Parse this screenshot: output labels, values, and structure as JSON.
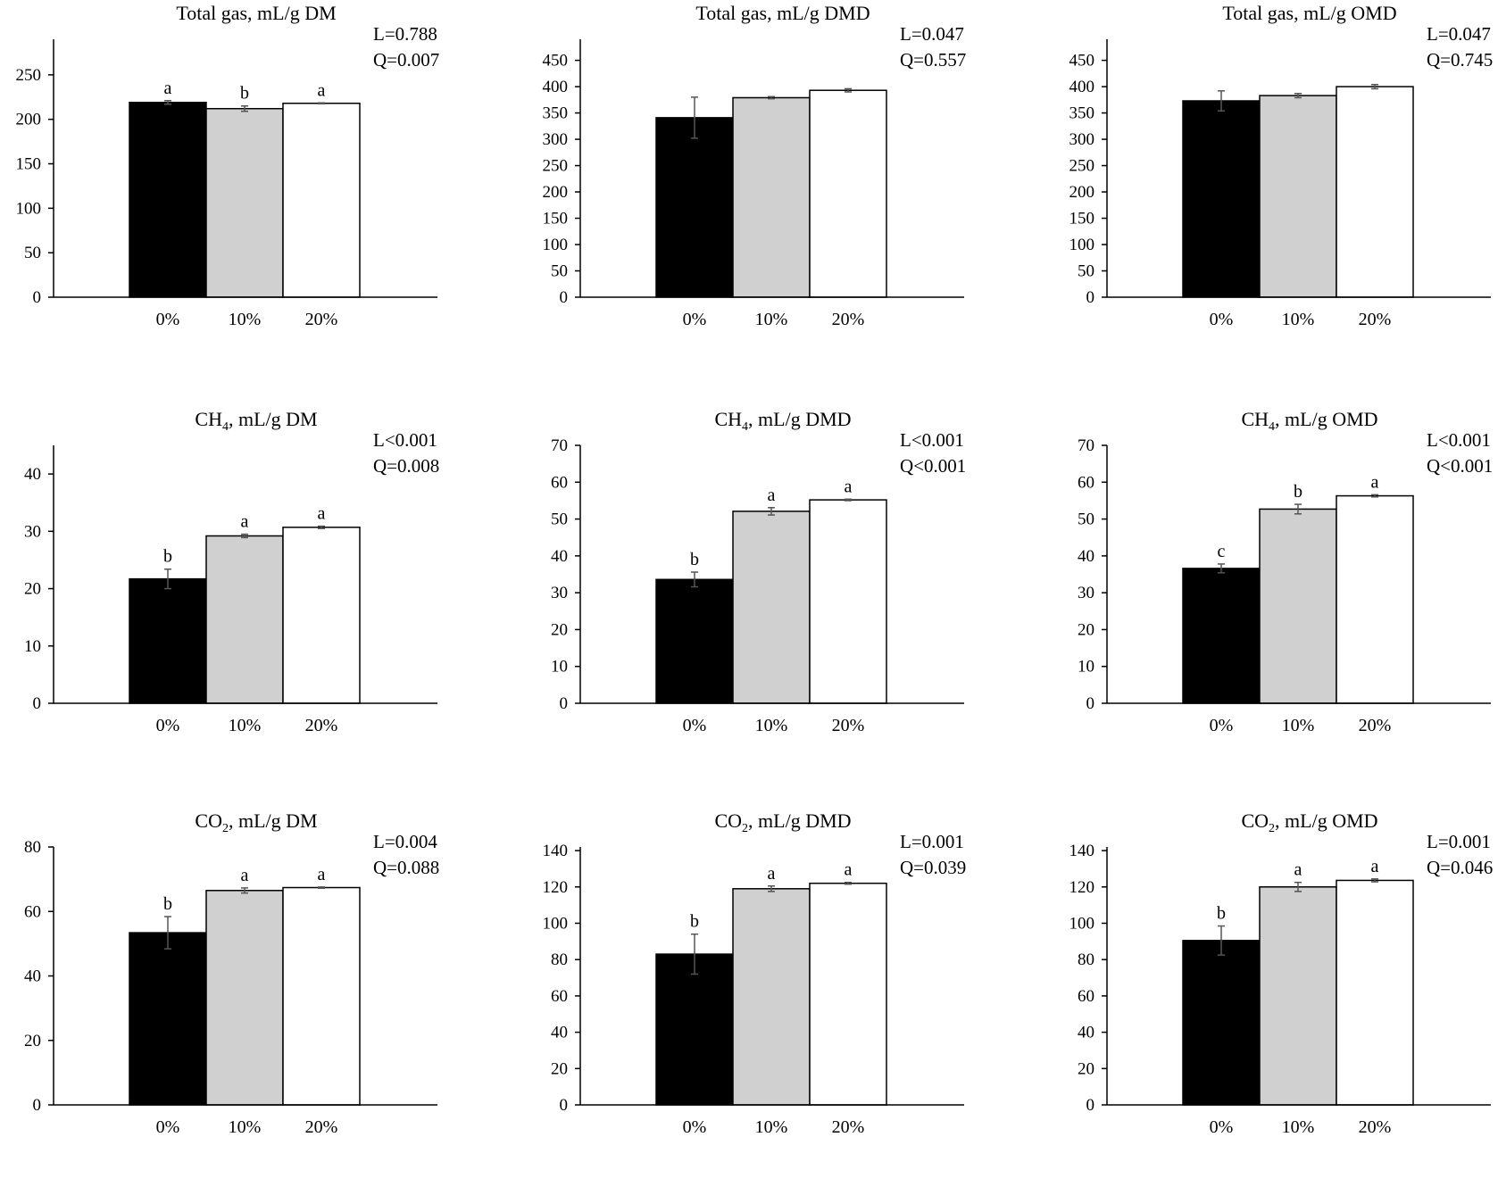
{
  "chart_data": [
    {
      "type": "bar",
      "title_main": "Total gas, mL/g DM",
      "title_sub": "",
      "title_rest": "",
      "categories": [
        "0%",
        "10%",
        "20%"
      ],
      "values": [
        219,
        212,
        218
      ],
      "errors": [
        2,
        3,
        0.5
      ],
      "letters": [
        "a",
        "b",
        "a"
      ],
      "stats": [
        "L=0.788",
        "Q=0.007"
      ],
      "ylim": [
        0,
        290
      ],
      "yticks": [
        "0",
        "50",
        "100",
        "150",
        "200",
        "250"
      ],
      "bar_colors": [
        "#000000",
        "#d0d0d0",
        "#ffffff"
      ]
    },
    {
      "type": "bar",
      "title_main": "Total gas, mL/g DMD",
      "title_sub": "",
      "title_rest": "",
      "categories": [
        "0%",
        "10%",
        "20%"
      ],
      "values": [
        341,
        379,
        393
      ],
      "errors": [
        39,
        2,
        3
      ],
      "letters": [
        "",
        "",
        ""
      ],
      "stats": [
        "L=0.047",
        "Q=0.557"
      ],
      "ylim": [
        0,
        490
      ],
      "yticks": [
        "0",
        "50",
        "100",
        "150",
        "200",
        "250",
        "300",
        "350",
        "400",
        "450"
      ],
      "bar_colors": [
        "#000000",
        "#d0d0d0",
        "#ffffff"
      ]
    },
    {
      "type": "bar",
      "title_main": "Total gas, mL/g OMD",
      "title_sub": "",
      "title_rest": "",
      "categories": [
        "0%",
        "10%",
        "20%"
      ],
      "values": [
        373,
        383,
        400
      ],
      "errors": [
        19,
        4,
        4
      ],
      "letters": [
        "",
        "",
        ""
      ],
      "stats": [
        "L=0.047",
        "Q=0.745"
      ],
      "ylim": [
        0,
        490
      ],
      "yticks": [
        "0",
        "50",
        "100",
        "150",
        "200",
        "250",
        "300",
        "350",
        "400",
        "450"
      ],
      "bar_colors": [
        "#000000",
        "#d0d0d0",
        "#ffffff"
      ]
    },
    {
      "type": "bar",
      "title_main": "CH",
      "title_sub": "4",
      "title_rest": ", mL/g DM",
      "categories": [
        "0%",
        "10%",
        "20%"
      ],
      "values": [
        21.7,
        29.2,
        30.7
      ],
      "errors": [
        1.7,
        0.3,
        0.2
      ],
      "letters": [
        "b",
        "a",
        "a"
      ],
      "stats": [
        "L<0.001",
        "Q=0.008"
      ],
      "ylim": [
        0,
        45
      ],
      "yticks": [
        "0",
        "10",
        "20",
        "30",
        "40"
      ],
      "bar_colors": [
        "#000000",
        "#d0d0d0",
        "#ffffff"
      ]
    },
    {
      "type": "bar",
      "title_main": "CH",
      "title_sub": "4",
      "title_rest": ", mL/g DMD",
      "categories": [
        "0%",
        "10%",
        "20%"
      ],
      "values": [
        33.6,
        52.1,
        55.2
      ],
      "errors": [
        2,
        1,
        0.2
      ],
      "letters": [
        "b",
        "a",
        "a"
      ],
      "stats": [
        "L<0.001",
        "Q<0.001"
      ],
      "ylim": [
        0,
        70
      ],
      "yticks": [
        "0",
        "10",
        "20",
        "30",
        "40",
        "50",
        "60",
        "70"
      ],
      "bar_colors": [
        "#000000",
        "#d0d0d0",
        "#ffffff"
      ]
    },
    {
      "type": "bar",
      "title_main": "CH",
      "title_sub": "4",
      "title_rest": ", mL/g OMD",
      "categories": [
        "0%",
        "10%",
        "20%"
      ],
      "values": [
        36.6,
        52.7,
        56.3
      ],
      "errors": [
        1.2,
        1.3,
        0.3
      ],
      "letters": [
        "c",
        "b",
        "a"
      ],
      "stats": [
        "L<0.001",
        "Q<0.001"
      ],
      "ylim": [
        0,
        70
      ],
      "yticks": [
        "0",
        "10",
        "20",
        "30",
        "40",
        "50",
        "60",
        "70"
      ],
      "bar_colors": [
        "#000000",
        "#d0d0d0",
        "#ffffff"
      ]
    },
    {
      "type": "bar",
      "title_main": "CO",
      "title_sub": "2",
      "title_rest": ", mL/g DM",
      "categories": [
        "0%",
        "10%",
        "20%"
      ],
      "values": [
        53.4,
        66.5,
        67.4
      ],
      "errors": [
        5,
        0.8,
        0.2
      ],
      "letters": [
        "b",
        "a",
        "a"
      ],
      "stats": [
        "L=0.004",
        "Q=0.088"
      ],
      "ylim": [
        0,
        80
      ],
      "yticks": [
        "0",
        "20",
        "40",
        "60",
        "80"
      ],
      "bar_colors": [
        "#000000",
        "#d0d0d0",
        "#ffffff"
      ]
    },
    {
      "type": "bar",
      "title_main": "CO",
      "title_sub": "2",
      "title_rest": ", mL/g DMD",
      "categories": [
        "0%",
        "10%",
        "20%"
      ],
      "values": [
        83,
        119,
        122
      ],
      "errors": [
        11,
        1.5,
        0.5
      ],
      "letters": [
        "b",
        "a",
        "a"
      ],
      "stats": [
        "L=0.001",
        "Q=0.039"
      ],
      "ylim": [
        0,
        142
      ],
      "yticks": [
        "0",
        "20",
        "40",
        "60",
        "80",
        "100",
        "120",
        "140"
      ],
      "bar_colors": [
        "#000000",
        "#d0d0d0",
        "#ffffff"
      ]
    },
    {
      "type": "bar",
      "title_main": "CO",
      "title_sub": "2",
      "title_rest": ", mL/g OMD",
      "categories": [
        "0%",
        "10%",
        "20%"
      ],
      "values": [
        90.5,
        120,
        123.6
      ],
      "errors": [
        8,
        2.5,
        0.8
      ],
      "letters": [
        "b",
        "a",
        "a"
      ],
      "stats": [
        "L=0.001",
        "Q=0.046"
      ],
      "ylim": [
        0,
        142
      ],
      "yticks": [
        "0",
        "20",
        "40",
        "60",
        "80",
        "100",
        "120",
        "140"
      ],
      "bar_colors": [
        "#000000",
        "#d0d0d0",
        "#ffffff"
      ]
    }
  ]
}
